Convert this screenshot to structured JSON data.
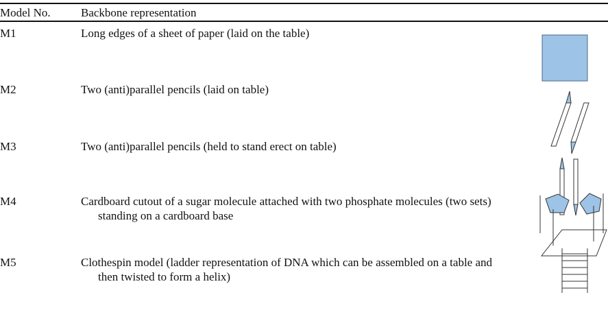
{
  "table": {
    "header": [
      "Model No.",
      "Backbone representation"
    ],
    "rows": [
      [
        "M1",
        "Long edges of a sheet of paper (laid on the table)"
      ],
      [
        "M2",
        "Two (anti)parallel pencils (laid on table)"
      ],
      [
        "M3",
        "Two (anti)parallel pencils (held to stand erect on table)"
      ],
      [
        "M4",
        "Cardboard cutout of a sugar molecule attached with two phosphate molecules (two sets) standing on a cardboard base"
      ],
      [
        "M5",
        "Clothespin model (ladder representation of DNA which can be assembled on a table and then twisted to form a helix)"
      ]
    ]
  }
}
